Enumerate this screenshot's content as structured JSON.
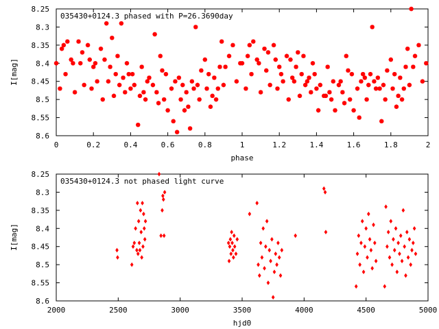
{
  "chart_data": [
    {
      "type": "scatter",
      "title": "035430+0124.3 phased with P=26.3690day",
      "xlabel": "phase",
      "ylabel": "I[mag]",
      "xlim": [
        0,
        2
      ],
      "ylim": [
        8.6,
        8.25
      ],
      "y_inverted": true,
      "x_ticks": [
        "0",
        "0.2",
        "0.4",
        "0.6",
        "0.8",
        "1",
        "1.2",
        "1.4",
        "1.6",
        "1.8",
        "2"
      ],
      "y_ticks": [
        "8.25",
        "8.3",
        "8.35",
        "8.4",
        "8.45",
        "8.5",
        "8.55",
        "8.6"
      ],
      "marker": "star",
      "color": "#ff0000",
      "series": [
        {
          "x": [
            0.0,
            0.02,
            0.03,
            0.04,
            0.05,
            0.06,
            0.08,
            0.09,
            0.1,
            0.12,
            0.13,
            0.14,
            0.15,
            0.17,
            0.18,
            0.19,
            0.2,
            0.21,
            0.22,
            0.24,
            0.25,
            0.26,
            0.27,
            0.28,
            0.29,
            0.3,
            0.31,
            0.32,
            0.33,
            0.34,
            0.35,
            0.36,
            0.37,
            0.38,
            0.39,
            0.4,
            0.41,
            0.42,
            0.44,
            0.45,
            0.46,
            0.47,
            0.48,
            0.49,
            0.5,
            0.52,
            0.53,
            0.54,
            0.55,
            0.56,
            0.57,
            0.58,
            0.59,
            0.6,
            0.62,
            0.63,
            0.64,
            0.65,
            0.66,
            0.67,
            0.68,
            0.69,
            0.7,
            0.71,
            0.72,
            0.73,
            0.74,
            0.75,
            0.76,
            0.77,
            0.78,
            0.8,
            0.81,
            0.82,
            0.83,
            0.84,
            0.85,
            0.86,
            0.87,
            0.88,
            0.89,
            0.9,
            0.91,
            0.93,
            0.95,
            0.97,
            0.99
          ],
          "y": [
            8.4,
            8.47,
            8.36,
            8.35,
            8.43,
            8.34,
            8.39,
            8.4,
            8.48,
            8.34,
            8.4,
            8.37,
            8.46,
            8.35,
            8.39,
            8.47,
            8.41,
            8.4,
            8.45,
            8.36,
            8.5,
            8.39,
            8.29,
            8.45,
            8.41,
            8.33,
            8.49,
            8.43,
            8.38,
            8.46,
            8.29,
            8.44,
            8.48,
            8.4,
            8.43,
            8.47,
            8.43,
            8.46,
            8.57,
            8.49,
            8.41,
            8.48,
            8.5,
            8.45,
            8.44,
            8.46,
            8.32,
            8.48,
            8.51,
            8.38,
            8.42,
            8.5,
            8.43,
            8.53,
            8.47,
            8.56,
            8.45,
            8.59,
            8.44,
            8.5,
            8.46,
            8.53,
            8.48,
            8.52,
            8.58,
            8.45,
            8.47,
            8.3,
            8.46,
            8.5,
            8.42,
            8.39,
            8.47,
            8.43,
            8.52,
            8.49,
            8.44,
            8.5,
            8.47,
            8.41,
            8.34,
            8.46,
            8.41,
            8.38,
            8.35,
            8.45,
            8.4
          ]
        },
        {
          "x": [
            1.0,
            1.02,
            1.03,
            1.04,
            1.05,
            1.06,
            1.08,
            1.09,
            1.1,
            1.12,
            1.13,
            1.14,
            1.15,
            1.17,
            1.18,
            1.19,
            1.2,
            1.21,
            1.22,
            1.24,
            1.25,
            1.26,
            1.27,
            1.28,
            1.29,
            1.3,
            1.31,
            1.32,
            1.33,
            1.34,
            1.35,
            1.36,
            1.37,
            1.38,
            1.39,
            1.4,
            1.41,
            1.42,
            1.44,
            1.45,
            1.46,
            1.47,
            1.48,
            1.49,
            1.5,
            1.52,
            1.53,
            1.54,
            1.55,
            1.56,
            1.57,
            1.58,
            1.59,
            1.6,
            1.62,
            1.63,
            1.64,
            1.65,
            1.66,
            1.67,
            1.68,
            1.69,
            1.7,
            1.71,
            1.72,
            1.73,
            1.74,
            1.75,
            1.76,
            1.77,
            1.78,
            1.8,
            1.81,
            1.82,
            1.83,
            1.84,
            1.85,
            1.86,
            1.87,
            1.88,
            1.89,
            1.9,
            1.91,
            1.92,
            1.93,
            1.95,
            1.97,
            1.99
          ],
          "y": [
            8.4,
            8.47,
            8.38,
            8.35,
            8.43,
            8.34,
            8.39,
            8.4,
            8.48,
            8.36,
            8.42,
            8.37,
            8.46,
            8.35,
            8.39,
            8.47,
            8.41,
            8.43,
            8.45,
            8.38,
            8.5,
            8.39,
            8.44,
            8.45,
            8.41,
            8.37,
            8.49,
            8.43,
            8.38,
            8.46,
            8.45,
            8.44,
            8.48,
            8.4,
            8.43,
            8.47,
            8.53,
            8.46,
            8.49,
            8.49,
            8.41,
            8.48,
            8.5,
            8.45,
            8.53,
            8.46,
            8.45,
            8.48,
            8.51,
            8.38,
            8.42,
            8.5,
            8.43,
            8.53,
            8.47,
            8.55,
            8.45,
            8.43,
            8.44,
            8.5,
            8.46,
            8.43,
            8.3,
            8.45,
            8.47,
            8.44,
            8.47,
            8.56,
            8.46,
            8.5,
            8.42,
            8.39,
            8.47,
            8.43,
            8.52,
            8.49,
            8.44,
            8.5,
            8.47,
            8.41,
            8.36,
            8.46,
            8.25,
            8.41,
            8.38,
            8.35,
            8.45,
            8.4
          ]
        }
      ]
    },
    {
      "type": "scatter",
      "title": "035430+0124.3 not phased light curve",
      "xlabel": "hjd0",
      "ylabel": "I[mag]",
      "xlim": [
        2000,
        5000
      ],
      "ylim": [
        8.6,
        8.25
      ],
      "y_inverted": true,
      "x_ticks": [
        "2000",
        "2500",
        "3000",
        "3500",
        "4000",
        "4500",
        "5000"
      ],
      "y_ticks": [
        "8.25",
        "8.3",
        "8.35",
        "8.4",
        "8.45",
        "8.5",
        "8.55",
        "8.6"
      ],
      "marker": "diamond",
      "color": "#ff0000",
      "series": [
        {
          "x": [
            2490,
            2495,
            2610,
            2620,
            2630,
            2640,
            2650,
            2655,
            2660,
            2665,
            2670,
            2675,
            2680,
            2685,
            2690,
            2695,
            2700,
            2705,
            2710,
            2715,
            2720,
            2830,
            2845,
            2855,
            2860,
            2865,
            2870,
            2875,
            3390,
            3395,
            3400,
            3405,
            3410,
            3415,
            3420,
            3425,
            3430,
            3435,
            3440,
            3450,
            3460,
            3560,
            3620,
            3630,
            3640,
            3650,
            3660,
            3670,
            3680,
            3690,
            3700,
            3710,
            3720,
            3730,
            3740,
            3750,
            3760,
            3770,
            3780,
            3790,
            3800,
            3810,
            3820,
            3930,
            4160,
            4170,
            4175,
            4420,
            4430,
            4440,
            4450,
            4460,
            4470,
            4480,
            4490,
            4500,
            4510,
            4520,
            4530,
            4540,
            4550,
            4560,
            4570,
            4580,
            4650,
            4660,
            4670,
            4680,
            4690,
            4700,
            4710,
            4720,
            4730,
            4740,
            4750,
            4760,
            4770,
            4780,
            4790,
            4800,
            4810,
            4820,
            4830,
            4840,
            4850,
            4860,
            4870,
            4880,
            4890,
            4900
          ],
          "y": [
            8.46,
            8.48,
            8.5,
            8.45,
            8.44,
            8.4,
            8.46,
            8.33,
            8.47,
            8.38,
            8.44,
            8.46,
            8.35,
            8.41,
            8.48,
            8.33,
            8.45,
            8.36,
            8.4,
            8.43,
            8.38,
            8.25,
            8.42,
            8.35,
            8.31,
            8.32,
            8.42,
            8.3,
            8.44,
            8.49,
            8.45,
            8.43,
            8.47,
            8.41,
            8.44,
            8.46,
            8.48,
            8.42,
            8.45,
            8.47,
            8.43,
            8.36,
            8.33,
            8.5,
            8.53,
            8.44,
            8.48,
            8.4,
            8.51,
            8.45,
            8.38,
            8.55,
            8.46,
            8.49,
            8.43,
            8.59,
            8.52,
            8.47,
            8.5,
            8.44,
            8.48,
            8.53,
            8.46,
            8.42,
            8.29,
            8.3,
            8.41,
            8.56,
            8.47,
            8.42,
            8.5,
            8.44,
            8.38,
            8.52,
            8.45,
            8.4,
            8.48,
            8.36,
            8.43,
            8.46,
            8.51,
            8.39,
            8.44,
            8.49,
            8.56,
            8.34,
            8.45,
            8.41,
            8.48,
            8.38,
            8.5,
            8.43,
            8.46,
            8.4,
            8.52,
            8.44,
            8.47,
            8.42,
            8.49,
            8.35,
            8.45,
            8.53,
            8.41,
            8.48,
            8.43,
            8.5,
            8.46,
            8.44,
            8.4,
            8.47
          ]
        }
      ]
    }
  ]
}
